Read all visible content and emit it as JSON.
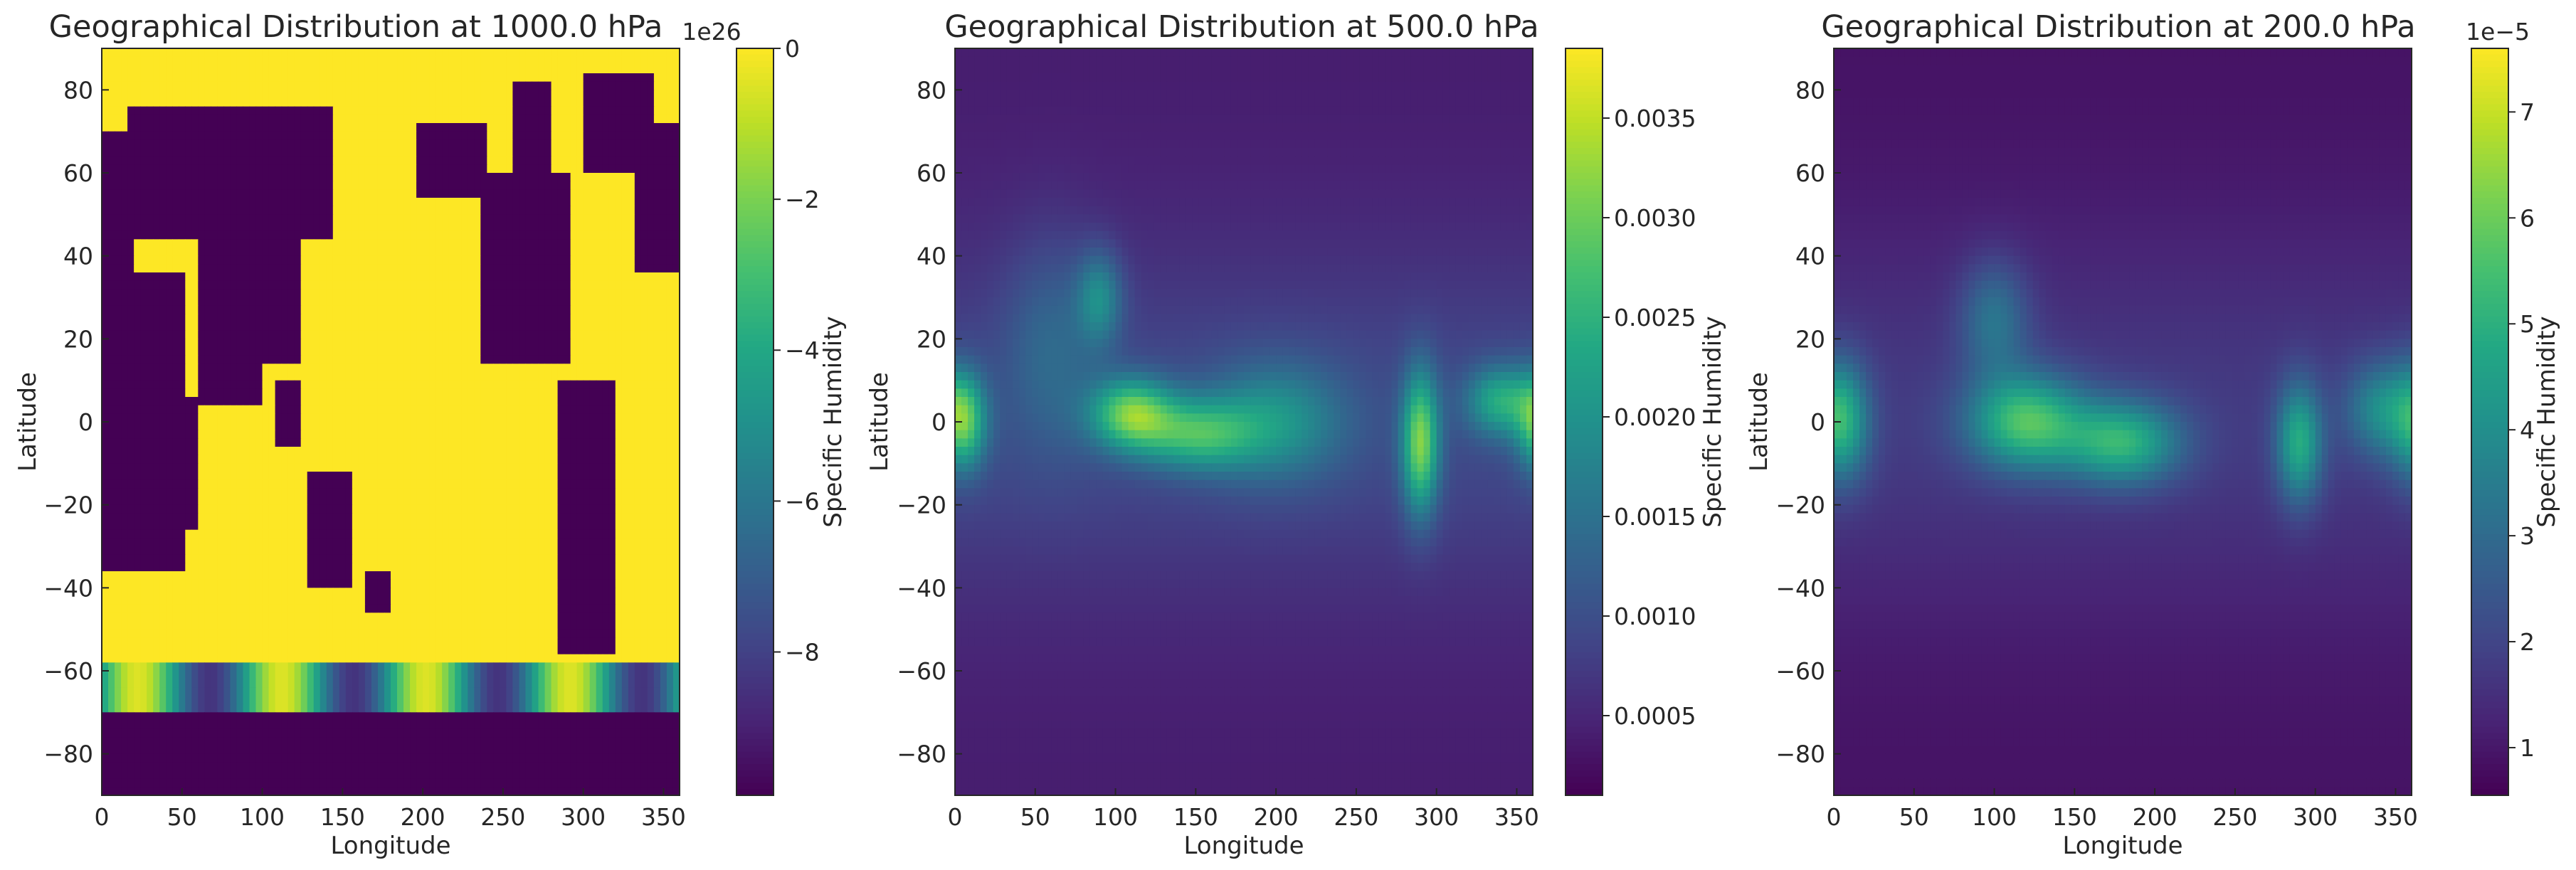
{
  "figure": {
    "background": "#ffffff"
  },
  "chart_data": [
    {
      "type": "heatmap",
      "title": "Geographical Distribution at 1000.0 hPa",
      "xlabel": "Longitude",
      "ylabel": "Latitude",
      "xlim": [
        0,
        360
      ],
      "ylim": [
        -90,
        90
      ],
      "xticks": [
        "0",
        "50",
        "100",
        "150",
        "200",
        "250",
        "300",
        "350"
      ],
      "yticks": [
        "80",
        "60",
        "40",
        "20",
        "0",
        "−20",
        "−40",
        "−60",
        "−80"
      ],
      "colormap": "viridis",
      "colorbar": {
        "label": "Specific Humidity",
        "offset_text": "1e26",
        "range": [
          -9.9,
          0
        ],
        "ticks": [
          "0",
          "−2",
          "−4",
          "−6",
          "−8"
        ]
      },
      "description_values": "Ocean and most land cells ~0 (yellow); continental land masses at large negative fill values (~−9.9e26, dark purple); transition band around −60 to −70 latitude"
    },
    {
      "type": "heatmap",
      "title": "Geographical Distribution at 500.0 hPa",
      "xlabel": "Longitude",
      "ylabel": "Latitude",
      "xlim": [
        0,
        360
      ],
      "ylim": [
        -90,
        90
      ],
      "xticks": [
        "0",
        "50",
        "100",
        "150",
        "200",
        "250",
        "300",
        "350"
      ],
      "yticks": [
        "80",
        "60",
        "40",
        "20",
        "0",
        "−20",
        "−40",
        "−60",
        "−80"
      ],
      "colormap": "viridis",
      "colorbar": {
        "label": "Specific Humidity",
        "offset_text": "",
        "range": [
          0.0001,
          0.00385
        ],
        "ticks": [
          "0.0035",
          "0.0030",
          "0.0025",
          "0.0020",
          "0.0015",
          "0.0010",
          "0.0005"
        ]
      },
      "description_values": "Maximum humidity (~0.0035) along equatorial band near 0–10 latitude around longitudes 0, 100–130, 280–290; minimum (~0.0001) at poles"
    },
    {
      "type": "heatmap",
      "title": "Geographical Distribution at 200.0 hPa",
      "xlabel": "Longitude",
      "ylabel": "Latitude",
      "xlim": [
        0,
        360
      ],
      "ylim": [
        -90,
        90
      ],
      "xticks": [
        "0",
        "50",
        "100",
        "150",
        "200",
        "250",
        "300",
        "350"
      ],
      "yticks": [
        "80",
        "60",
        "40",
        "20",
        "0",
        "−20",
        "−40",
        "−60",
        "−80"
      ],
      "colormap": "viridis",
      "colorbar": {
        "label": "Specific Humidity",
        "offset_text": "1e−5",
        "range": [
          0.55,
          7.6
        ],
        "ticks": [
          "7",
          "6",
          "5",
          "4",
          "3",
          "2",
          "1"
        ]
      },
      "description_values": "Maximum humidity (~7e-5) in tropical band around 100–200 longitude near equator; minimum (~0.6e-5) at poles"
    }
  ]
}
